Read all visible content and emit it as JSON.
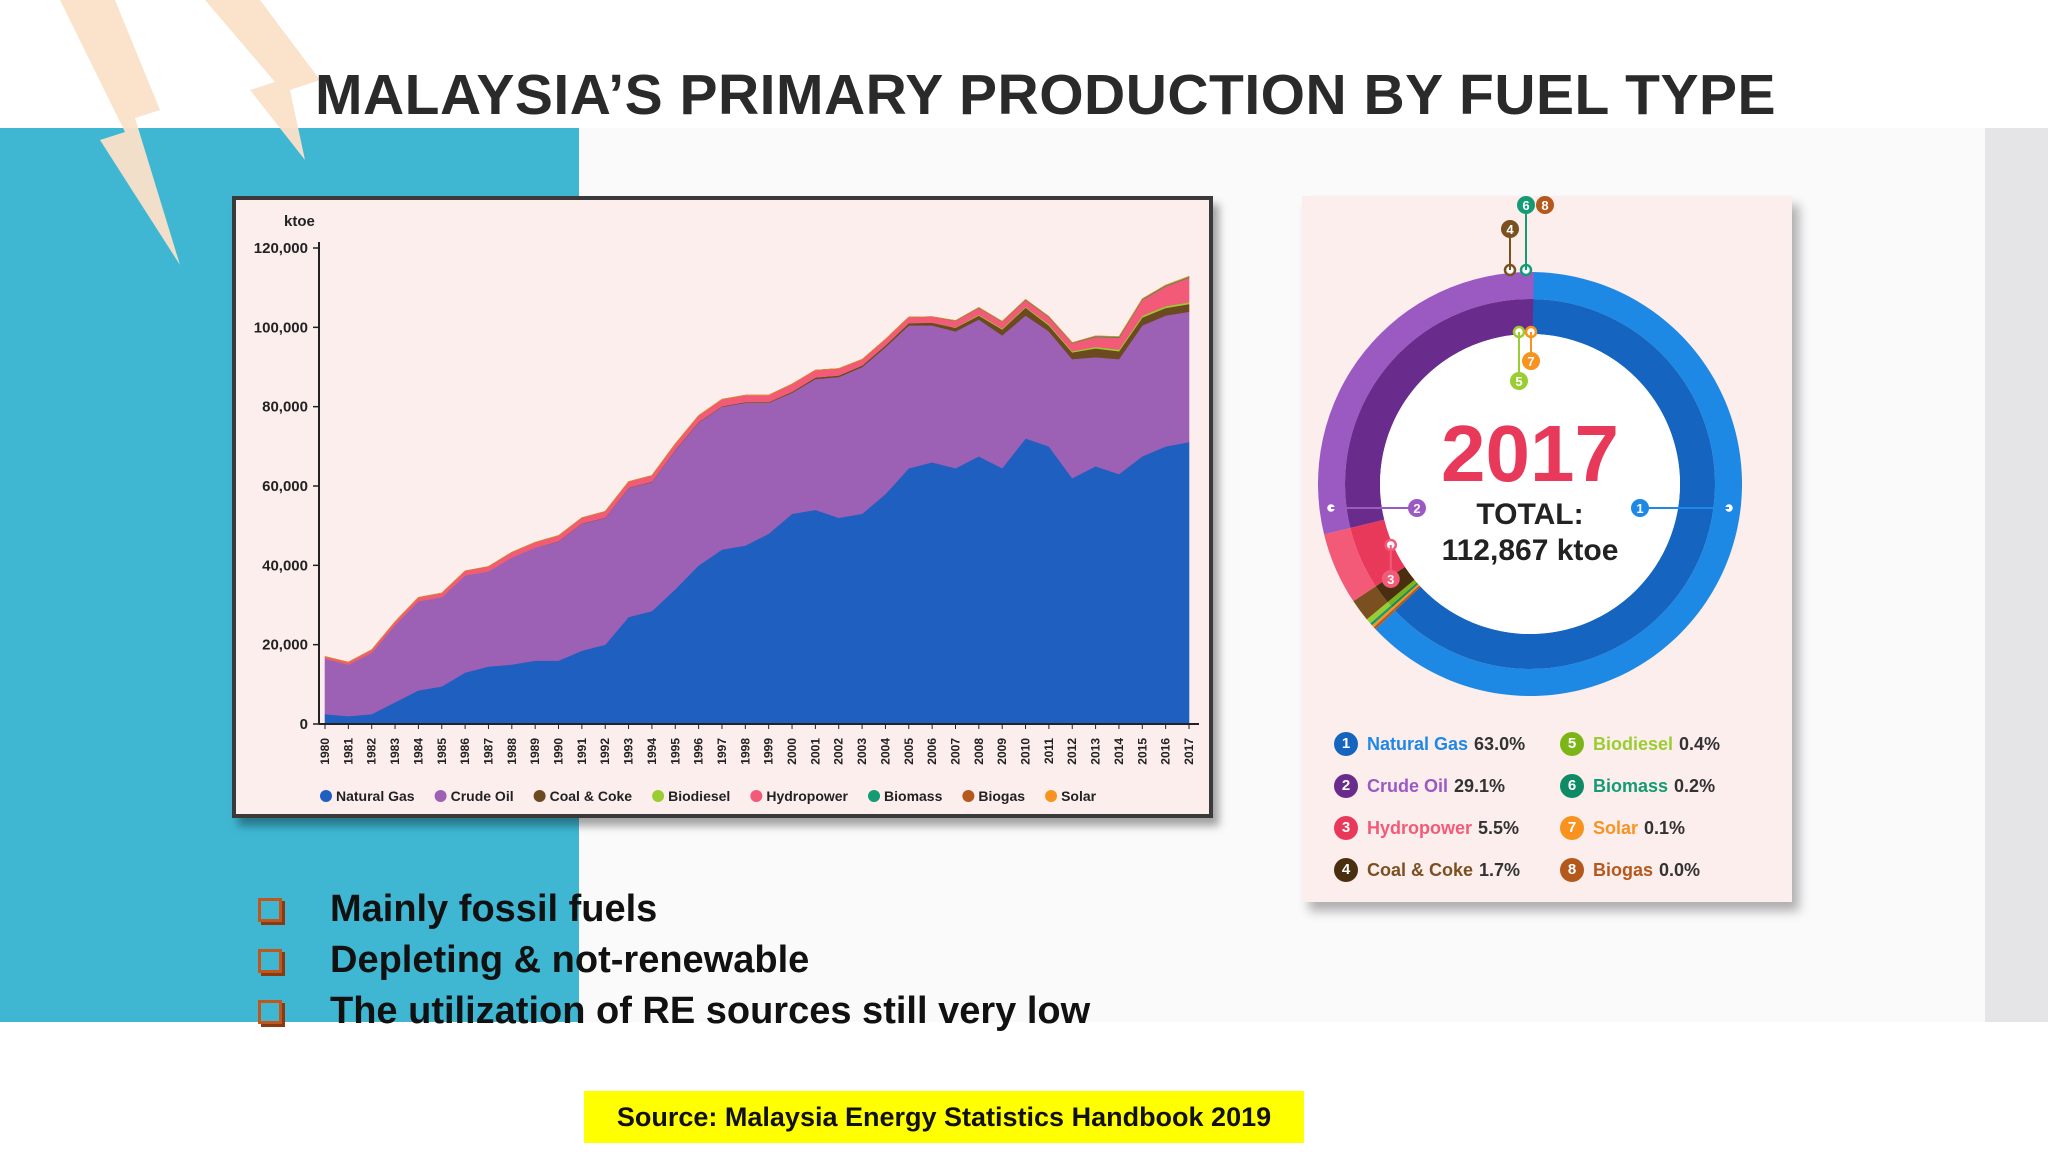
{
  "slide": {
    "title": "MALAYSIA’S PRIMARY PRODUCTION BY FUEL TYPE",
    "bullets": [
      "Mainly fossil fuels",
      "Depleting & not-renewable",
      "The utilization of RE sources still very low"
    ],
    "source": "Source: Malaysia Energy Statistics Handbook 2019",
    "colors": {
      "accent_blue": "#3fb7d3",
      "bolt": "#fbe0c8",
      "source_bg": "#ffff00",
      "bullet_box": "#c0571c"
    }
  },
  "chart_data": [
    {
      "type": "area",
      "stacked": true,
      "unit": "ktoe",
      "ylim": [
        0,
        120000
      ],
      "yticks": [
        "0",
        "20,000",
        "40,000",
        "60,000",
        "80,000",
        "100,000",
        "120,000"
      ],
      "ytick_values": [
        0,
        20000,
        40000,
        60000,
        80000,
        100000,
        120000
      ],
      "x": [
        "1980",
        "1981",
        "1982",
        "1983",
        "1984",
        "1985",
        "1986",
        "1987",
        "1988",
        "1989",
        "1990",
        "1991",
        "1992",
        "1993",
        "1994",
        "1995",
        "1996",
        "1997",
        "1998",
        "1999",
        "2000",
        "2001",
        "2002",
        "2003",
        "2004",
        "2005",
        "2006",
        "2007",
        "2008",
        "2009",
        "2010",
        "2011",
        "2012",
        "2013",
        "2014",
        "2015",
        "2016",
        "2017"
      ],
      "legend_position": "bottom",
      "series": [
        {
          "name": "Natural Gas",
          "color": "#1f5fbf",
          "values": [
            2500,
            2000,
            2500,
            5500,
            8500,
            9500,
            13000,
            14500,
            15000,
            16000,
            16000,
            18500,
            20000,
            27000,
            28500,
            34000,
            40000,
            44000,
            45000,
            48000,
            53000,
            54000,
            52000,
            53000,
            58000,
            64500,
            66000,
            64500,
            67500,
            64500,
            72000,
            70000,
            62000,
            65000,
            63000,
            67500,
            70000,
            71100
          ]
        },
        {
          "name": "Crude Oil",
          "color": "#9c60b5",
          "values": [
            14000,
            13000,
            15500,
            19500,
            22500,
            22500,
            24500,
            24000,
            27000,
            28500,
            30000,
            32000,
            32000,
            32500,
            32500,
            35000,
            36000,
            36000,
            36000,
            33000,
            30500,
            33000,
            35500,
            37000,
            37000,
            36000,
            34500,
            34500,
            34500,
            33500,
            31000,
            29000,
            30000,
            27500,
            29000,
            33000,
            33000,
            32850
          ]
        },
        {
          "name": "Coal & Coke",
          "color": "#6b4a1f",
          "values": [
            0,
            0,
            0,
            0,
            0,
            0,
            0,
            0,
            0,
            0,
            100,
            100,
            100,
            100,
            150,
            150,
            150,
            150,
            200,
            200,
            300,
            400,
            400,
            400,
            500,
            600,
            700,
            900,
            1000,
            1500,
            2000,
            1500,
            1700,
            2200,
            2000,
            2000,
            1900,
            1920
          ]
        },
        {
          "name": "Biodiesel",
          "color": "#9acd32",
          "values": [
            0,
            0,
            0,
            0,
            0,
            0,
            0,
            0,
            0,
            0,
            0,
            0,
            0,
            0,
            0,
            0,
            0,
            0,
            0,
            0,
            0,
            0,
            0,
            0,
            0,
            0,
            0,
            100,
            200,
            200,
            200,
            300,
            300,
            400,
            400,
            450,
            450,
            450
          ]
        },
        {
          "name": "Hydropower",
          "color": "#f25a78",
          "values": [
            500,
            600,
            700,
            800,
            900,
            1000,
            1100,
            1200,
            1300,
            1300,
            1400,
            1400,
            1500,
            1500,
            1500,
            1500,
            1600,
            1700,
            1700,
            1700,
            1900,
            1800,
            1700,
            1500,
            1500,
            1500,
            1500,
            1600,
            1700,
            1700,
            1700,
            1800,
            2000,
            2500,
            3000,
            4000,
            5000,
            6200
          ]
        },
        {
          "name": "Biomass",
          "color": "#139c73",
          "values": [
            0,
            0,
            0,
            0,
            0,
            0,
            0,
            0,
            0,
            0,
            0,
            0,
            0,
            0,
            0,
            0,
            0,
            0,
            0,
            0,
            0,
            0,
            0,
            0,
            0,
            0,
            0,
            100,
            100,
            100,
            150,
            150,
            150,
            200,
            200,
            200,
            220,
            230
          ]
        },
        {
          "name": "Biogas",
          "color": "#b4581c",
          "values": [
            0,
            0,
            0,
            0,
            0,
            0,
            0,
            0,
            0,
            0,
            0,
            0,
            0,
            0,
            0,
            0,
            0,
            0,
            0,
            0,
            0,
            0,
            0,
            0,
            0,
            0,
            0,
            0,
            0,
            0,
            0,
            0,
            0,
            20,
            30,
            30,
            30,
            30
          ]
        },
        {
          "name": "Solar",
          "color": "#f7931e",
          "values": [
            0,
            0,
            0,
            0,
            0,
            0,
            0,
            0,
            0,
            0,
            0,
            0,
            0,
            0,
            0,
            0,
            0,
            0,
            0,
            0,
            0,
            0,
            0,
            0,
            0,
            0,
            0,
            0,
            0,
            0,
            0,
            0,
            10,
            30,
            50,
            70,
            90,
            110
          ]
        }
      ]
    },
    {
      "type": "pie",
      "donut": true,
      "year_label": "2017",
      "total_label": "TOTAL:",
      "total_value": "112,867 ktoe",
      "slices": [
        {
          "id": "1",
          "name": "Natural Gas",
          "pct_label": "63.0%",
          "value": 63.0,
          "color": "#1565c0",
          "color_light": "#1e88e5"
        },
        {
          "id": "2",
          "name": "Crude Oil",
          "pct_label": "29.1%",
          "value": 29.1,
          "color": "#6a2c8c",
          "color_light": "#9b59c2"
        },
        {
          "id": "3",
          "name": "Hydropower",
          "pct_label": "5.5%",
          "value": 5.5,
          "color": "#e8395a",
          "color_light": "#f25a78"
        },
        {
          "id": "4",
          "name": "Coal & Coke",
          "pct_label": "1.7%",
          "value": 1.7,
          "color": "#4a2e10",
          "color_light": "#7a5020"
        },
        {
          "id": "5",
          "name": "Biodiesel",
          "pct_label": "0.4%",
          "value": 0.4,
          "color": "#7cb518",
          "color_light": "#9acd32"
        },
        {
          "id": "6",
          "name": "Biomass",
          "pct_label": "0.2%",
          "value": 0.2,
          "color": "#0e8a64",
          "color_light": "#139c73"
        },
        {
          "id": "7",
          "name": "Solar",
          "pct_label": "0.1%",
          "value": 0.1,
          "color": "#f7931e",
          "color_light": "#f7931e"
        },
        {
          "id": "8",
          "name": "Biogas",
          "pct_label": "0.0%",
          "value": 0.0,
          "color": "#b4581c",
          "color_light": "#b4581c"
        }
      ]
    }
  ]
}
